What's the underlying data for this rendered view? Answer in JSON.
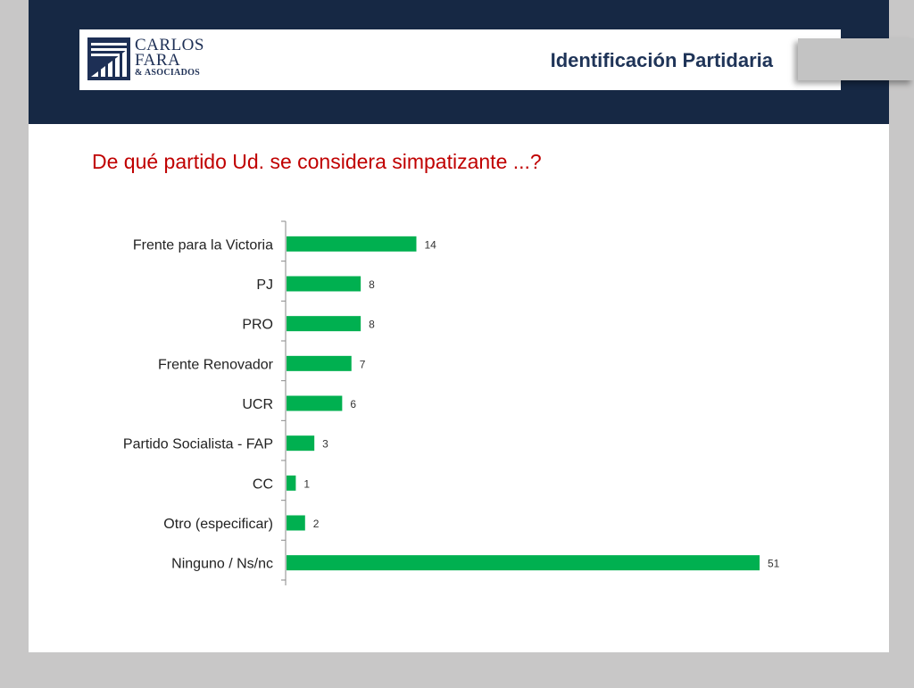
{
  "header": {
    "logo": {
      "line1": "CARLOS",
      "line2": "FARA",
      "line3": "& ASOCIADOS"
    },
    "title": "Identificación Partidaria"
  },
  "question": "De qué partido Ud. se considera simpatizante ...?",
  "colors": {
    "header_band": "#162844",
    "bar": "#00b050",
    "question": "#c00000",
    "title": "#1f3458"
  },
  "chart_data": {
    "type": "bar",
    "orientation": "horizontal",
    "categories": [
      "Frente para la Victoria",
      "PJ",
      "PRO",
      "Frente Renovador",
      "UCR",
      "Partido Socialista - FAP",
      "CC",
      "Otro (especificar)",
      "Ninguno / Ns/nc"
    ],
    "values": [
      14,
      8,
      8,
      7,
      6,
      3,
      1,
      2,
      51
    ],
    "data_labels": [
      "14",
      "8",
      "8",
      "7",
      "6",
      "3",
      "1",
      "2",
      "51"
    ],
    "xlim": [
      0,
      51
    ],
    "grid": false,
    "legend": "none"
  }
}
